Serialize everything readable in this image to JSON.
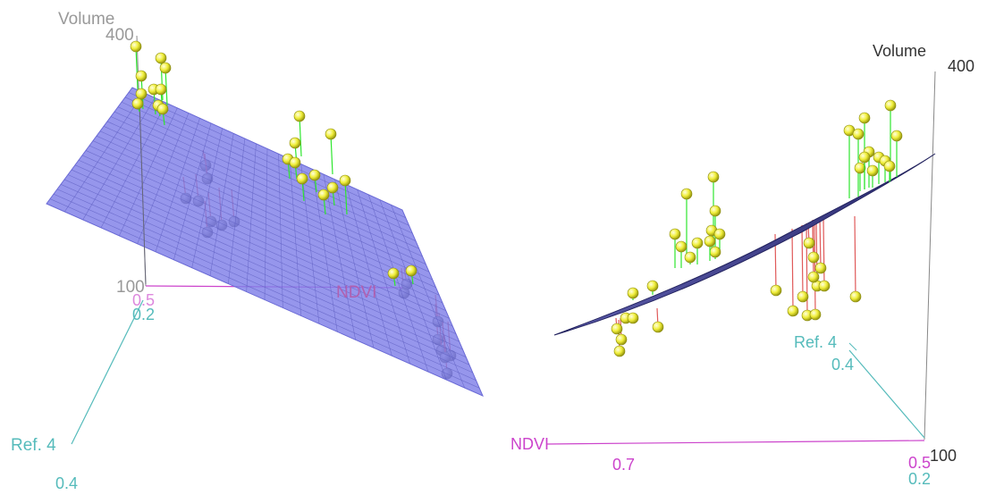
{
  "chart_data": [
    {
      "type": "scatter",
      "view": "left",
      "axes": {
        "z": {
          "label": "Volume",
          "range": [
            100,
            400
          ],
          "ticks": [
            "400",
            "100"
          ]
        },
        "x": {
          "label": "NDVI",
          "ticks": [
            "0.5"
          ]
        },
        "y": {
          "label": "Ref. 4",
          "ticks": [
            "0.2",
            "0.4"
          ]
        }
      },
      "surface": "fitted regression plane",
      "residual_colors": {
        "above": "#2ee62e",
        "below": "#e05a5a"
      },
      "point_color": "#f0ee3a",
      "plane_color": "#7f7fe8"
    },
    {
      "type": "scatter",
      "view": "right",
      "axes": {
        "z": {
          "label": "Volume",
          "range": [
            100,
            400
          ],
          "ticks": [
            "400",
            "100"
          ]
        },
        "x": {
          "label": "NDVI",
          "ticks": [
            "0.7",
            "0.5"
          ]
        },
        "y": {
          "label": "Ref. 4",
          "ticks": [
            "0.4",
            "0.2"
          ]
        }
      },
      "surface": "fitted regression plane",
      "residual_colors": {
        "above": "#2ee62e",
        "below": "#e05a5a"
      },
      "point_color": "#f0ee3a",
      "plane_color": "#3a3a8a"
    }
  ],
  "colors": {
    "axis_z": "#888888",
    "axis_x": "#cc44cc",
    "axis_y": "#55bbbb",
    "label_dark": "#333333",
    "label_gray": "#999999"
  }
}
